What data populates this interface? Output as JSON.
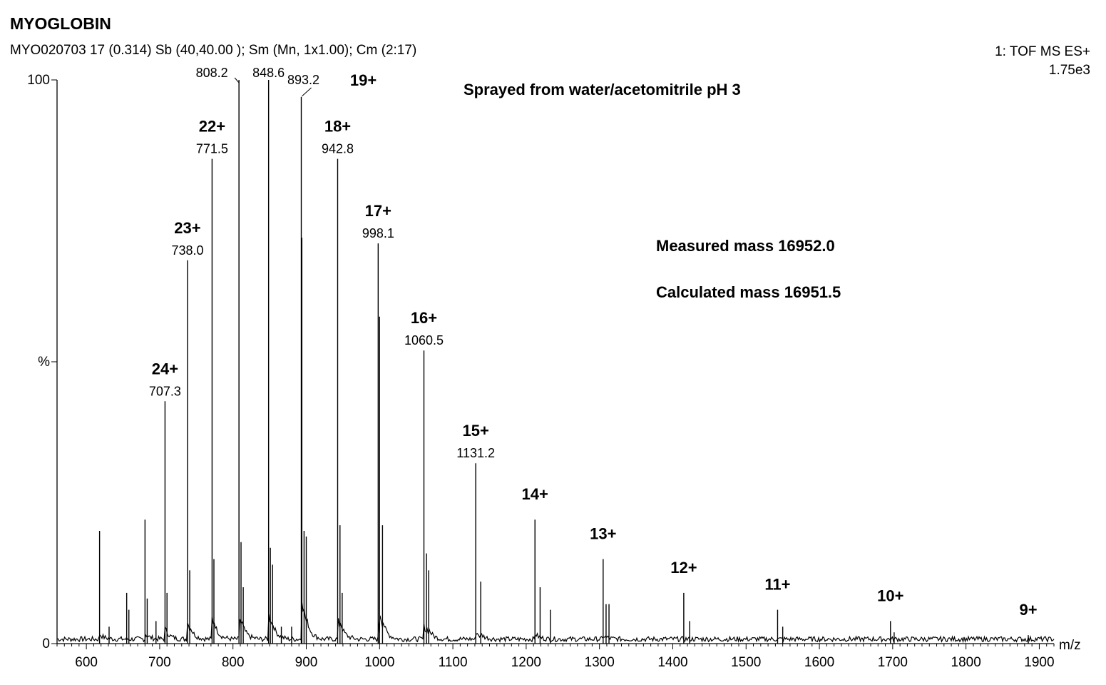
{
  "header": {
    "title": "MYOGLOBIN",
    "subtitle": "MYO020703  17 (0.314) Sb (40,40.00 ); Sm (Mn, 1x1.00); Cm (2:17)",
    "instrument": "1: TOF MS ES+",
    "intensity": "1.75e3"
  },
  "annotations": {
    "sprayed": "Sprayed from water/acetomitrile pH 3",
    "measured": "Measured mass 16952.0",
    "calculated": "Calculated mass 16951.5"
  },
  "chart_data": {
    "type": "line",
    "title": "MYOGLOBIN",
    "xlabel": "m/z",
    "ylabel": "%",
    "xlim": [
      560,
      1920
    ],
    "ylim": [
      0,
      100
    ],
    "x_ticks": [
      600,
      700,
      800,
      900,
      1000,
      1100,
      1200,
      1300,
      1400,
      1500,
      1600,
      1700,
      1800,
      1900
    ],
    "y_tick_labels": [
      "0",
      "%",
      "100"
    ],
    "y_ticks": [
      0,
      50,
      100
    ],
    "grid": false,
    "peaks": [
      {
        "mz": 618,
        "rel": 20
      },
      {
        "mz": 631,
        "rel": 3
      },
      {
        "mz": 655,
        "rel": 9
      },
      {
        "mz": 658,
        "rel": 6
      },
      {
        "mz": 680,
        "rel": 22
      },
      {
        "mz": 683,
        "rel": 8
      },
      {
        "mz": 695,
        "rel": 4
      },
      {
        "mz": 707.3,
        "rel": 43,
        "charge": "24+",
        "label": "707.3"
      },
      {
        "mz": 710,
        "rel": 9
      },
      {
        "mz": 738.0,
        "rel": 68,
        "charge": "23+",
        "label": "738.0"
      },
      {
        "mz": 741,
        "rel": 13
      },
      {
        "mz": 771.5,
        "rel": 86,
        "charge": "22+",
        "label": "771.5"
      },
      {
        "mz": 774,
        "rel": 15
      },
      {
        "mz": 808.2,
        "rel": 100,
        "label": "808.2"
      },
      {
        "mz": 811,
        "rel": 18
      },
      {
        "mz": 814,
        "rel": 10
      },
      {
        "mz": 848.6,
        "rel": 100,
        "label": "848.6"
      },
      {
        "mz": 851,
        "rel": 17
      },
      {
        "mz": 854,
        "rel": 14
      },
      {
        "mz": 866,
        "rel": 3
      },
      {
        "mz": 880,
        "rel": 3
      },
      {
        "mz": 893.2,
        "rel": 97,
        "charge": "19+",
        "label": "893.2"
      },
      {
        "mz": 894,
        "rel": 72
      },
      {
        "mz": 897,
        "rel": 20
      },
      {
        "mz": 900,
        "rel": 19
      },
      {
        "mz": 942.8,
        "rel": 86,
        "charge": "18+",
        "label": "942.8"
      },
      {
        "mz": 946,
        "rel": 21
      },
      {
        "mz": 949,
        "rel": 9
      },
      {
        "mz": 998.1,
        "rel": 71,
        "charge": "17+",
        "label": "998.1"
      },
      {
        "mz": 1000,
        "rel": 58
      },
      {
        "mz": 1004,
        "rel": 21
      },
      {
        "mz": 1060.5,
        "rel": 52,
        "charge": "16+",
        "label": "1060.5"
      },
      {
        "mz": 1064,
        "rel": 16
      },
      {
        "mz": 1067,
        "rel": 13
      },
      {
        "mz": 1131.2,
        "rel": 32,
        "charge": "15+",
        "label": "1131.2"
      },
      {
        "mz": 1138,
        "rel": 11
      },
      {
        "mz": 1212,
        "rel": 22,
        "charge": "14+"
      },
      {
        "mz": 1219,
        "rel": 10
      },
      {
        "mz": 1233,
        "rel": 6
      },
      {
        "mz": 1305,
        "rel": 15,
        "charge": "13+"
      },
      {
        "mz": 1309,
        "rel": 7
      },
      {
        "mz": 1313,
        "rel": 7
      },
      {
        "mz": 1415,
        "rel": 9,
        "charge": "12+"
      },
      {
        "mz": 1423,
        "rel": 4
      },
      {
        "mz": 1543,
        "rel": 6,
        "charge": "11+"
      },
      {
        "mz": 1550,
        "rel": 3
      },
      {
        "mz": 1697,
        "rel": 4,
        "charge": "10+"
      },
      {
        "mz": 1702,
        "rel": 2
      },
      {
        "mz": 1885,
        "rel": 1.5,
        "charge": "9+"
      }
    ]
  }
}
